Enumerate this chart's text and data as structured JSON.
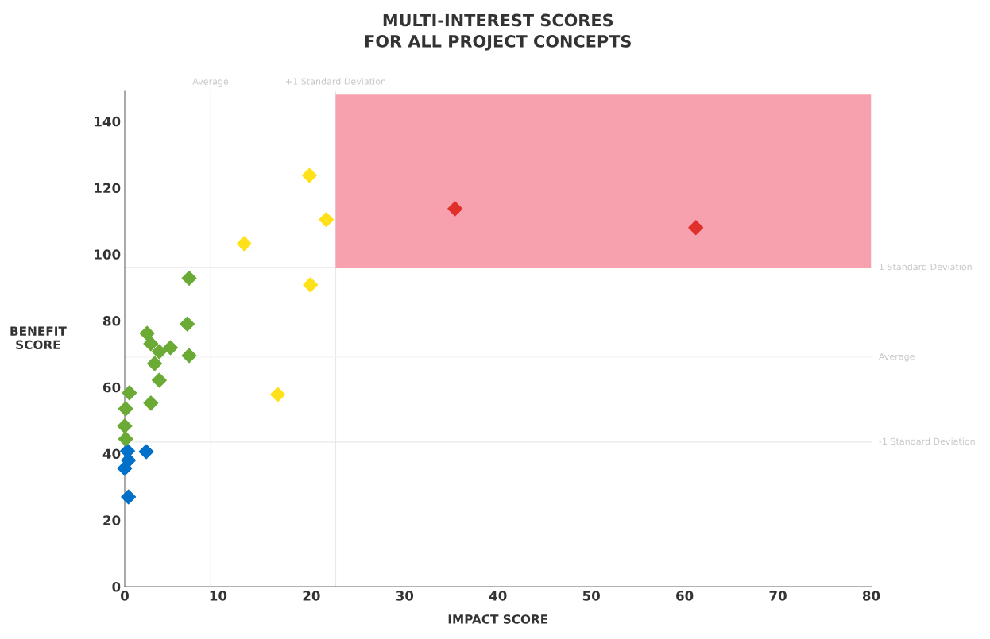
{
  "chart_data": {
    "type": "scatter",
    "title": "MULTI-INTEREST SCORES\nFOR ALL PROJECT CONCEPTS",
    "xlabel": "IMPACT SCORE",
    "ylabel": "BENEFIT\nSCORE",
    "series": [
      {
        "color": "#0070c8",
        "x": [
          0.3,
          0.4,
          0,
          0.4,
          2.3
        ],
        "values": [
          40.8,
          38,
          35.6,
          27,
          40.6
        ]
      },
      {
        "color": "#6aaa35",
        "x": [
          6.7,
          2.4,
          2.8,
          3.7,
          4.9,
          6.9,
          3.2,
          3.7,
          0.5,
          2.8,
          0.1,
          0,
          0.1,
          6.9
        ],
        "values": [
          79,
          76.2,
          73.1,
          70.7,
          71.9,
          69.5,
          67.1,
          62.1,
          58.3,
          55.2,
          53.5,
          48.3,
          44.4,
          92.8
        ]
      },
      {
        "color": "#ffe11a",
        "x": [
          19.8,
          21.6,
          12.8,
          19.9,
          16.4
        ],
        "values": [
          123.7,
          110.4,
          103.2,
          90.8,
          57.8
        ]
      },
      {
        "color": "#e0302a",
        "x": [
          35.4,
          61.2
        ],
        "values": [
          113.7,
          108
        ]
      }
    ],
    "marker": "diamond",
    "xlim": [
      0,
      80
    ],
    "ylim": [
      0,
      149
    ],
    "xticks": [
      0,
      10,
      20,
      30,
      40,
      50,
      60,
      70,
      80
    ],
    "yticks": [
      0,
      20,
      40,
      60,
      80,
      100,
      120,
      140
    ],
    "ref_lines": [
      {
        "axis": "x",
        "value": 9.2,
        "label": "Average",
        "color": "#f4f4f4"
      },
      {
        "axis": "x",
        "value": 22.6,
        "label": "+1 Standard Deviation",
        "color": "#e8e8e8"
      },
      {
        "axis": "y",
        "value": 96,
        "label": "1 Standard Deviation",
        "color": "#e8e8e8"
      },
      {
        "axis": "y",
        "value": 69,
        "label": "Average",
        "color": "#f4f4f4"
      },
      {
        "axis": "y",
        "value": 43.5,
        "label": "-1 Standard Deviation",
        "color": "#e8e8e8"
      }
    ],
    "bands": [
      {
        "axis": "y",
        "from": 96,
        "to": 148,
        "color": "#f7a0ae"
      }
    ],
    "grid": false
  }
}
